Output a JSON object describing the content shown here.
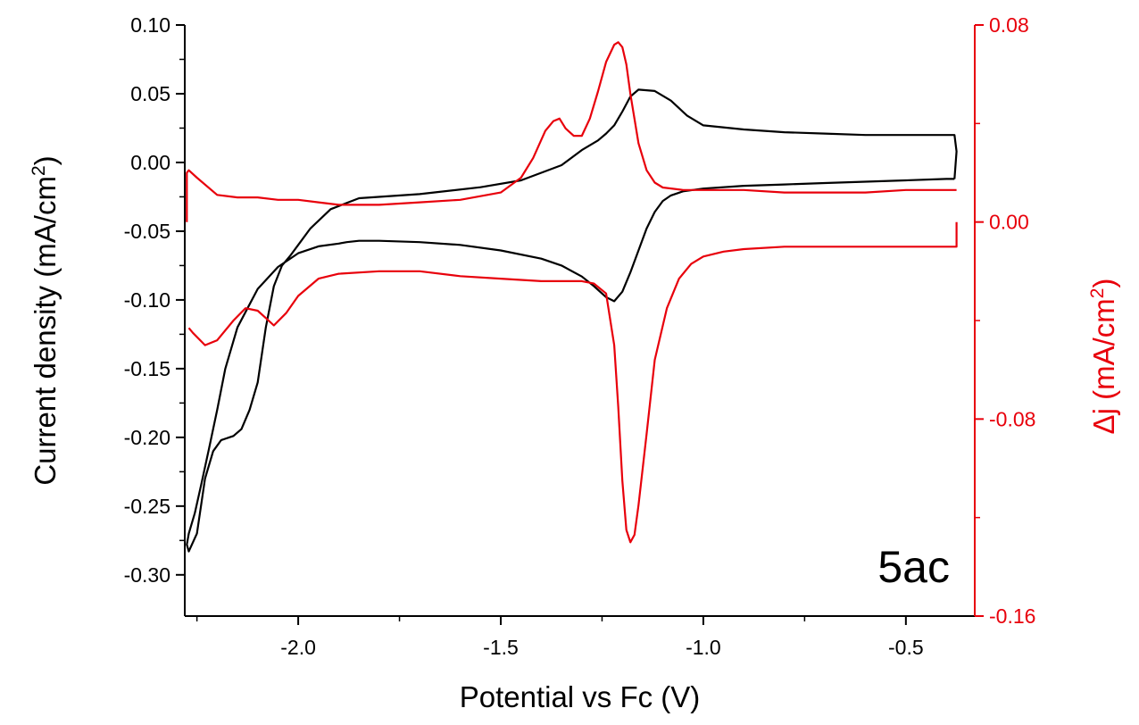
{
  "chart_data": {
    "type": "line",
    "title": "",
    "xlabel": "Potential vs Fc (V)",
    "ylabel_left": "Current density (mA/cm",
    "ylabel_left_sup": "2",
    "ylabel_left_end": ")",
    "ylabel_right": "Δj (mA/cm",
    "ylabel_right_sup": "2",
    "ylabel_right_end": ")",
    "annotation": "5ac",
    "xlim": [
      -2.28,
      -0.33
    ],
    "ylim_left": [
      -0.33,
      0.1
    ],
    "ylim_right": [
      -0.16,
      0.08
    ],
    "x_ticks": [
      -2.0,
      -1.5,
      -1.0,
      -0.5
    ],
    "x_tick_labels": [
      "-2.0",
      "-1.5",
      "-1.0",
      "-0.5"
    ],
    "y_left_ticks": [
      0.1,
      0.05,
      0.0,
      -0.05,
      -0.1,
      -0.15,
      -0.2,
      -0.25,
      -0.3
    ],
    "y_left_tick_labels": [
      "0.10",
      "0.05",
      "0.00",
      "-0.05",
      "-0.10",
      "-0.15",
      "-0.20",
      "-0.25",
      "-0.30"
    ],
    "y_right_ticks": [
      0.08,
      0.0,
      -0.08,
      -0.16
    ],
    "y_right_tick_labels": [
      "0.08",
      "0.00",
      "-0.08",
      "-0.16"
    ],
    "grid": false,
    "colors": {
      "cv": "#000000",
      "dj": "#e8000b",
      "axis_left": "#000000",
      "axis_right": "#e8000b"
    },
    "series": [
      {
        "axis": "left",
        "color": "#000000",
        "x": [
          -0.38,
          -0.4,
          -0.5,
          -0.6,
          -0.7,
          -0.8,
          -0.9,
          -1.0,
          -1.05,
          -1.08,
          -1.1,
          -1.12,
          -1.14,
          -1.16,
          -1.18,
          -1.2,
          -1.22,
          -1.24,
          -1.27,
          -1.3,
          -1.35,
          -1.4,
          -1.5,
          -1.6,
          -1.7,
          -1.8,
          -1.85,
          -1.88,
          -1.9,
          -1.95,
          -2.0,
          -2.05,
          -2.1,
          -2.15,
          -2.18,
          -2.2,
          -2.22,
          -2.24,
          -2.255,
          -2.27,
          -2.275,
          -2.27,
          -2.25,
          -2.23,
          -2.21,
          -2.19,
          -2.16,
          -2.14,
          -2.12,
          -2.1,
          -2.08,
          -2.06,
          -2.04,
          -2.02,
          -2.0,
          -1.97,
          -1.92,
          -1.85,
          -1.7,
          -1.55,
          -1.45,
          -1.35,
          -1.3,
          -1.26,
          -1.24,
          -1.22,
          -1.2,
          -1.18,
          -1.16,
          -1.12,
          -1.08,
          -1.04,
          -1.0,
          -0.9,
          -0.8,
          -0.7,
          -0.6,
          -0.5,
          -0.4,
          -0.38,
          -0.375,
          -0.38
        ],
        "y": [
          -0.012,
          -0.012,
          -0.013,
          -0.014,
          -0.015,
          -0.016,
          -0.017,
          -0.019,
          -0.021,
          -0.024,
          -0.028,
          -0.036,
          -0.048,
          -0.064,
          -0.08,
          -0.094,
          -0.101,
          -0.098,
          -0.09,
          -0.083,
          -0.075,
          -0.07,
          -0.064,
          -0.06,
          -0.058,
          -0.057,
          -0.057,
          -0.058,
          -0.059,
          -0.061,
          -0.066,
          -0.076,
          -0.092,
          -0.12,
          -0.15,
          -0.18,
          -0.208,
          -0.235,
          -0.255,
          -0.27,
          -0.278,
          -0.283,
          -0.27,
          -0.23,
          -0.21,
          -0.202,
          -0.199,
          -0.194,
          -0.18,
          -0.16,
          -0.12,
          -0.09,
          -0.075,
          -0.068,
          -0.06,
          -0.048,
          -0.034,
          -0.026,
          -0.023,
          -0.018,
          -0.013,
          -0.002,
          0.009,
          0.016,
          0.021,
          0.027,
          0.037,
          0.048,
          0.053,
          0.052,
          0.045,
          0.034,
          0.027,
          0.024,
          0.022,
          0.021,
          0.02,
          0.02,
          0.02,
          0.02,
          0.008,
          -0.012
        ]
      },
      {
        "axis": "right",
        "color": "#e8000b",
        "x": [
          -2.275,
          -2.275,
          -2.27,
          -2.25,
          -2.2,
          -2.15,
          -2.1,
          -2.05,
          -2.0,
          -1.95,
          -1.9,
          -1.85,
          -1.8,
          -1.7,
          -1.6,
          -1.5,
          -1.45,
          -1.42,
          -1.39,
          -1.37,
          -1.355,
          -1.34,
          -1.32,
          -1.3,
          -1.28,
          -1.26,
          -1.24,
          -1.22,
          -1.21,
          -1.2,
          -1.19,
          -1.18,
          -1.16,
          -1.14,
          -1.12,
          -1.1,
          -1.05,
          -1.0,
          -0.9,
          -0.8,
          -0.7,
          -0.6,
          -0.5,
          -0.4,
          -0.375
        ],
        "y": [
          0.0,
          0.02,
          0.021,
          0.018,
          0.011,
          0.01,
          0.01,
          0.009,
          0.009,
          0.008,
          0.007,
          0.007,
          0.007,
          0.008,
          0.009,
          0.012,
          0.018,
          0.026,
          0.037,
          0.041,
          0.042,
          0.038,
          0.035,
          0.035,
          0.042,
          0.053,
          0.065,
          0.072,
          0.073,
          0.071,
          0.064,
          0.052,
          0.032,
          0.021,
          0.016,
          0.014,
          0.013,
          0.013,
          0.013,
          0.012,
          0.012,
          0.012,
          0.013,
          0.013,
          0.013
        ]
      },
      {
        "axis": "right",
        "color": "#e8000b",
        "x": [
          -0.375,
          -0.375,
          -0.4,
          -0.5,
          -0.6,
          -0.7,
          -0.8,
          -0.9,
          -0.95,
          -1.0,
          -1.03,
          -1.06,
          -1.09,
          -1.12,
          -1.14,
          -1.16,
          -1.17,
          -1.18,
          -1.19,
          -1.2,
          -1.21,
          -1.22,
          -1.24,
          -1.27,
          -1.3,
          -1.4,
          -1.5,
          -1.6,
          -1.7,
          -1.8,
          -1.9,
          -1.95,
          -2.0,
          -2.03,
          -2.06,
          -2.08,
          -2.1,
          -2.13,
          -2.16,
          -2.2,
          -2.23,
          -2.26,
          -2.27
        ],
        "y": [
          0.0,
          -0.01,
          -0.01,
          -0.01,
          -0.01,
          -0.01,
          -0.01,
          -0.011,
          -0.012,
          -0.014,
          -0.017,
          -0.023,
          -0.035,
          -0.056,
          -0.086,
          -0.115,
          -0.127,
          -0.13,
          -0.125,
          -0.105,
          -0.075,
          -0.05,
          -0.029,
          -0.025,
          -0.024,
          -0.024,
          -0.023,
          -0.022,
          -0.02,
          -0.02,
          -0.021,
          -0.023,
          -0.03,
          -0.037,
          -0.042,
          -0.039,
          -0.036,
          -0.035,
          -0.04,
          -0.048,
          -0.05,
          -0.045,
          -0.043
        ]
      }
    ]
  }
}
